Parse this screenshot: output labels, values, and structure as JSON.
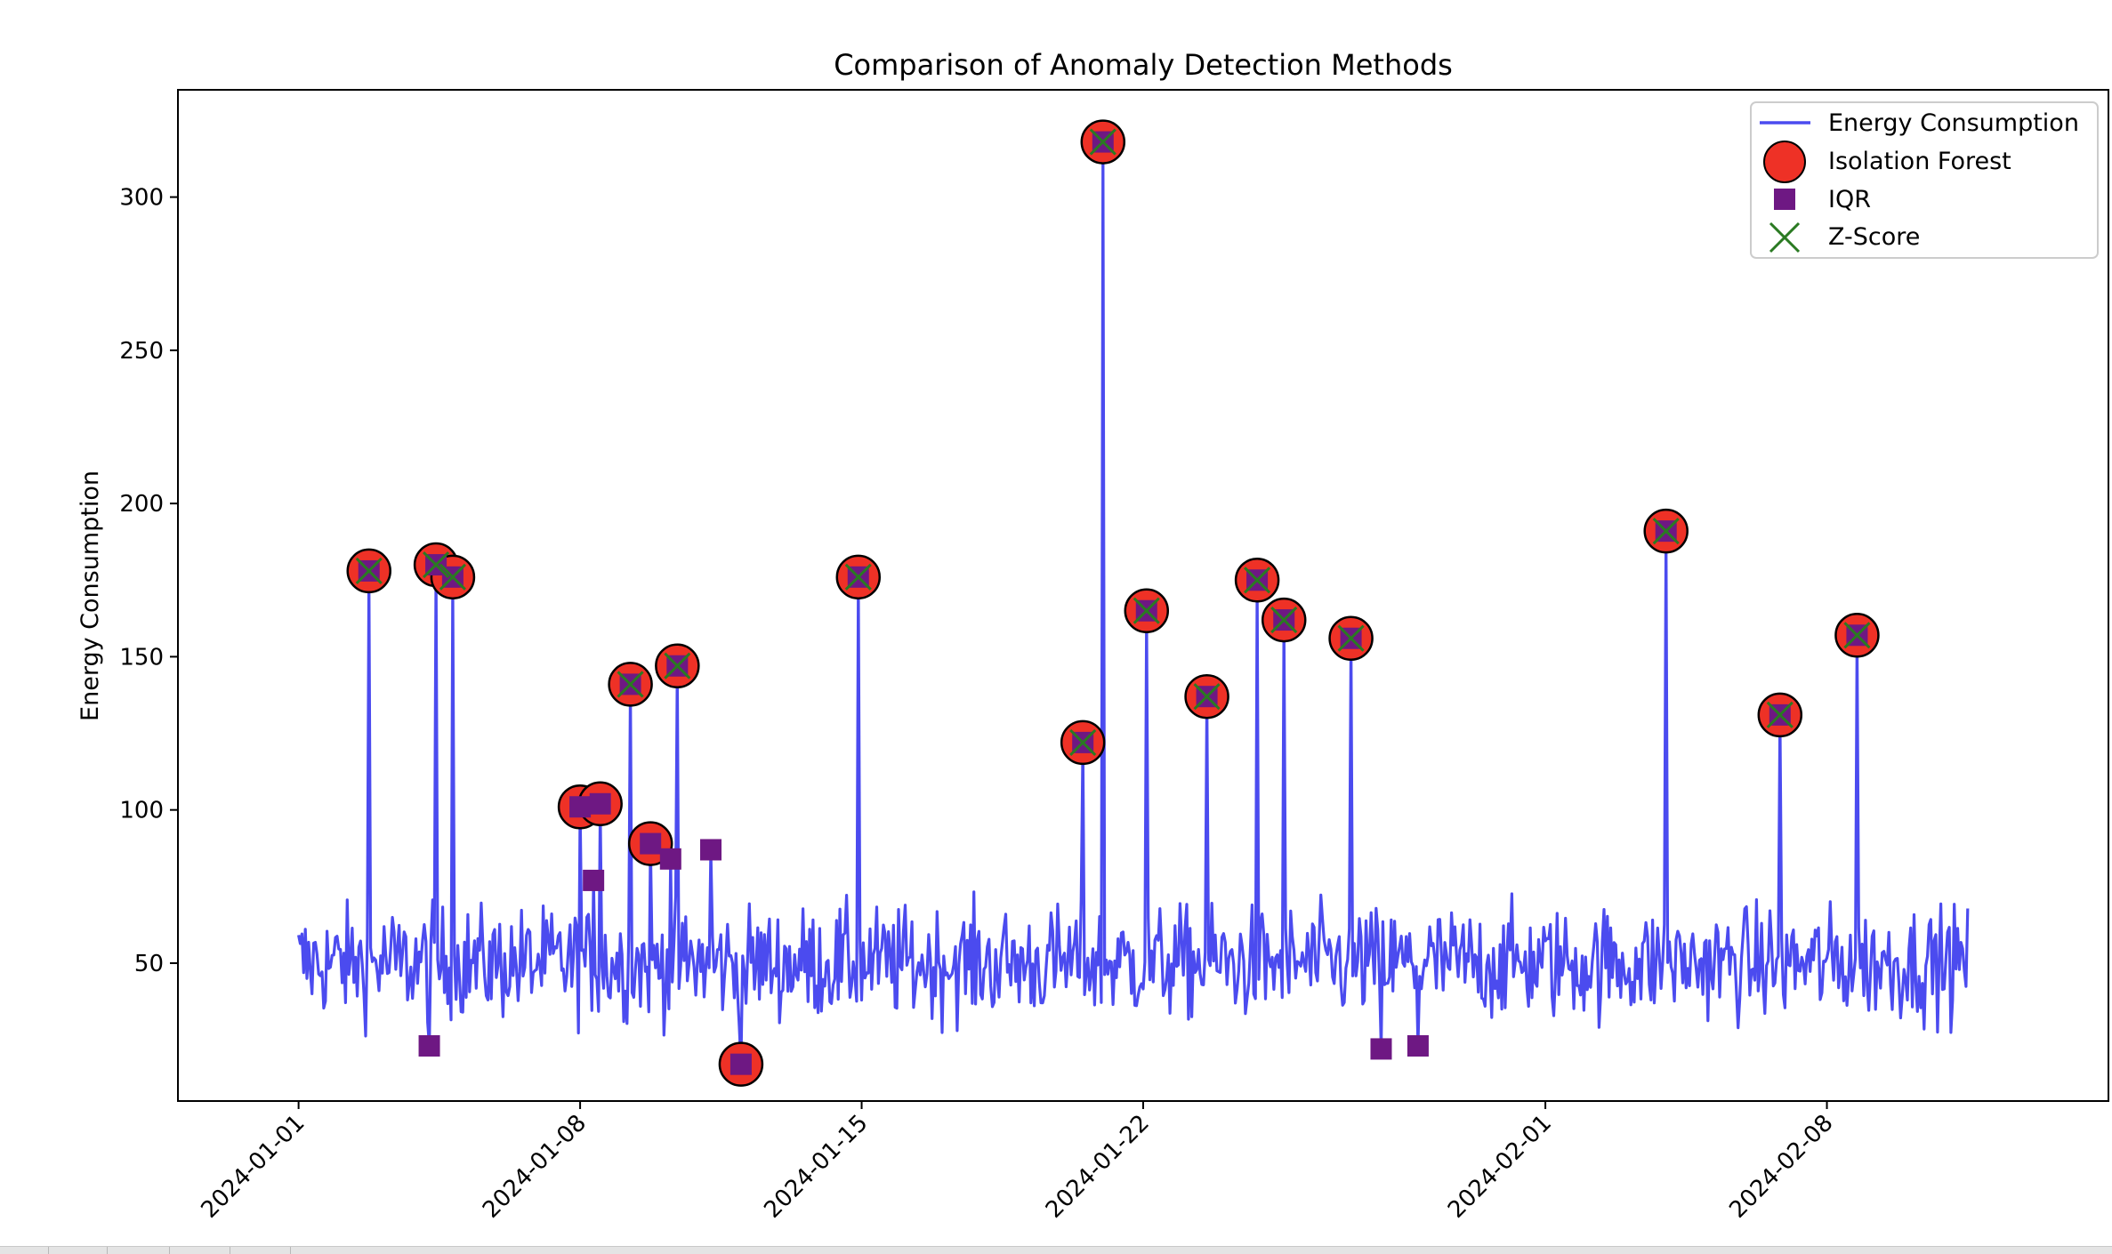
{
  "chart_data": {
    "type": "line",
    "title": "Comparison of Anomaly Detection Methods",
    "xlabel": "",
    "ylabel": "Energy Consumption",
    "xlim": [
      "2023-12-29T00:00",
      "2024-02-15T00:00"
    ],
    "ylim": [
      5,
      335
    ],
    "x_ticks": [
      "2024-01-01",
      "2024-01-08",
      "2024-01-15",
      "2024-01-22",
      "2024-02-01",
      "2024-02-08"
    ],
    "y_ticks": [
      50,
      100,
      150,
      200,
      250,
      300
    ],
    "grid": false,
    "legend_position": "top-right",
    "colors": {
      "line": "#4b4bef",
      "isolation_forest": "#ee3126",
      "iqr": "#6e1883",
      "zscore": "#2a7a22"
    },
    "baseline": {
      "start": "2024-01-01T00:00",
      "end": "2024-02-11T12:00",
      "samples_per_day": 24,
      "mean": 50,
      "spread": 9
    },
    "spikes": [
      {
        "x": "2024-01-02T18:00",
        "y": 178
      },
      {
        "x": "2024-01-04T06:00",
        "y": 23
      },
      {
        "x": "2024-01-04T10:00",
        "y": 180
      },
      {
        "x": "2024-01-04T20:00",
        "y": 176
      },
      {
        "x": "2024-01-08T00:00",
        "y": 101
      },
      {
        "x": "2024-01-08T08:00",
        "y": 77
      },
      {
        "x": "2024-01-08T12:00",
        "y": 102
      },
      {
        "x": "2024-01-09T06:00",
        "y": 141
      },
      {
        "x": "2024-01-09T18:00",
        "y": 89
      },
      {
        "x": "2024-01-10T06:00",
        "y": 84
      },
      {
        "x": "2024-01-10T10:00",
        "y": 147
      },
      {
        "x": "2024-01-11T06:00",
        "y": 87
      },
      {
        "x": "2024-01-12T00:00",
        "y": 17
      },
      {
        "x": "2024-01-14T22:00",
        "y": 176
      },
      {
        "x": "2024-01-20T12:00",
        "y": 122
      },
      {
        "x": "2024-01-21T00:00",
        "y": 318
      },
      {
        "x": "2024-01-22T02:00",
        "y": 165
      },
      {
        "x": "2024-01-23T14:00",
        "y": 137
      },
      {
        "x": "2024-01-24T20:00",
        "y": 175
      },
      {
        "x": "2024-01-25T12:00",
        "y": 162
      },
      {
        "x": "2024-01-27T04:00",
        "y": 156
      },
      {
        "x": "2024-01-27T22:00",
        "y": 22
      },
      {
        "x": "2024-01-28T20:00",
        "y": 23
      },
      {
        "x": "2024-02-04T00:00",
        "y": 191
      },
      {
        "x": "2024-02-06T20:00",
        "y": 131
      },
      {
        "x": "2024-02-08T18:00",
        "y": 157
      }
    ],
    "series": [
      {
        "name": "Isolation Forest",
        "points": [
          {
            "x": "2024-01-02T18:00",
            "y": 178
          },
          {
            "x": "2024-01-04T10:00",
            "y": 180
          },
          {
            "x": "2024-01-04T20:00",
            "y": 176
          },
          {
            "x": "2024-01-08T00:00",
            "y": 101
          },
          {
            "x": "2024-01-08T12:00",
            "y": 102
          },
          {
            "x": "2024-01-09T06:00",
            "y": 141
          },
          {
            "x": "2024-01-09T18:00",
            "y": 89
          },
          {
            "x": "2024-01-10T10:00",
            "y": 147
          },
          {
            "x": "2024-01-12T00:00",
            "y": 17
          },
          {
            "x": "2024-01-14T22:00",
            "y": 176
          },
          {
            "x": "2024-01-20T12:00",
            "y": 122
          },
          {
            "x": "2024-01-21T00:00",
            "y": 318
          },
          {
            "x": "2024-01-22T02:00",
            "y": 165
          },
          {
            "x": "2024-01-23T14:00",
            "y": 137
          },
          {
            "x": "2024-01-24T20:00",
            "y": 175
          },
          {
            "x": "2024-01-25T12:00",
            "y": 162
          },
          {
            "x": "2024-01-27T04:00",
            "y": 156
          },
          {
            "x": "2024-02-04T00:00",
            "y": 191
          },
          {
            "x": "2024-02-06T20:00",
            "y": 131
          },
          {
            "x": "2024-02-08T18:00",
            "y": 157
          }
        ]
      },
      {
        "name": "IQR",
        "points": [
          {
            "x": "2024-01-02T18:00",
            "y": 178
          },
          {
            "x": "2024-01-04T06:00",
            "y": 23
          },
          {
            "x": "2024-01-04T10:00",
            "y": 180
          },
          {
            "x": "2024-01-04T20:00",
            "y": 176
          },
          {
            "x": "2024-01-08T00:00",
            "y": 101
          },
          {
            "x": "2024-01-08T08:00",
            "y": 77
          },
          {
            "x": "2024-01-08T12:00",
            "y": 102
          },
          {
            "x": "2024-01-09T06:00",
            "y": 141
          },
          {
            "x": "2024-01-09T18:00",
            "y": 89
          },
          {
            "x": "2024-01-10T06:00",
            "y": 84
          },
          {
            "x": "2024-01-10T10:00",
            "y": 147
          },
          {
            "x": "2024-01-11T06:00",
            "y": 87
          },
          {
            "x": "2024-01-12T00:00",
            "y": 17
          },
          {
            "x": "2024-01-14T22:00",
            "y": 176
          },
          {
            "x": "2024-01-20T12:00",
            "y": 122
          },
          {
            "x": "2024-01-21T00:00",
            "y": 318
          },
          {
            "x": "2024-01-22T02:00",
            "y": 165
          },
          {
            "x": "2024-01-23T14:00",
            "y": 137
          },
          {
            "x": "2024-01-24T20:00",
            "y": 175
          },
          {
            "x": "2024-01-25T12:00",
            "y": 162
          },
          {
            "x": "2024-01-27T04:00",
            "y": 156
          },
          {
            "x": "2024-01-27T22:00",
            "y": 22
          },
          {
            "x": "2024-01-28T20:00",
            "y": 23
          },
          {
            "x": "2024-02-04T00:00",
            "y": 191
          },
          {
            "x": "2024-02-06T20:00",
            "y": 131
          },
          {
            "x": "2024-02-08T18:00",
            "y": 157
          }
        ]
      },
      {
        "name": "Z-Score",
        "points": [
          {
            "x": "2024-01-02T18:00",
            "y": 178
          },
          {
            "x": "2024-01-04T10:00",
            "y": 180
          },
          {
            "x": "2024-01-04T20:00",
            "y": 176
          },
          {
            "x": "2024-01-09T06:00",
            "y": 141
          },
          {
            "x": "2024-01-10T10:00",
            "y": 147
          },
          {
            "x": "2024-01-14T22:00",
            "y": 176
          },
          {
            "x": "2024-01-20T12:00",
            "y": 122
          },
          {
            "x": "2024-01-21T00:00",
            "y": 318
          },
          {
            "x": "2024-01-22T02:00",
            "y": 165
          },
          {
            "x": "2024-01-23T14:00",
            "y": 137
          },
          {
            "x": "2024-01-24T20:00",
            "y": 175
          },
          {
            "x": "2024-01-25T12:00",
            "y": 162
          },
          {
            "x": "2024-01-27T04:00",
            "y": 156
          },
          {
            "x": "2024-02-04T00:00",
            "y": 191
          },
          {
            "x": "2024-02-06T20:00",
            "y": 131
          },
          {
            "x": "2024-02-08T18:00",
            "y": 157
          }
        ]
      }
    ],
    "legend": [
      "Energy Consumption",
      "Isolation Forest",
      "IQR",
      "Z-Score"
    ]
  }
}
